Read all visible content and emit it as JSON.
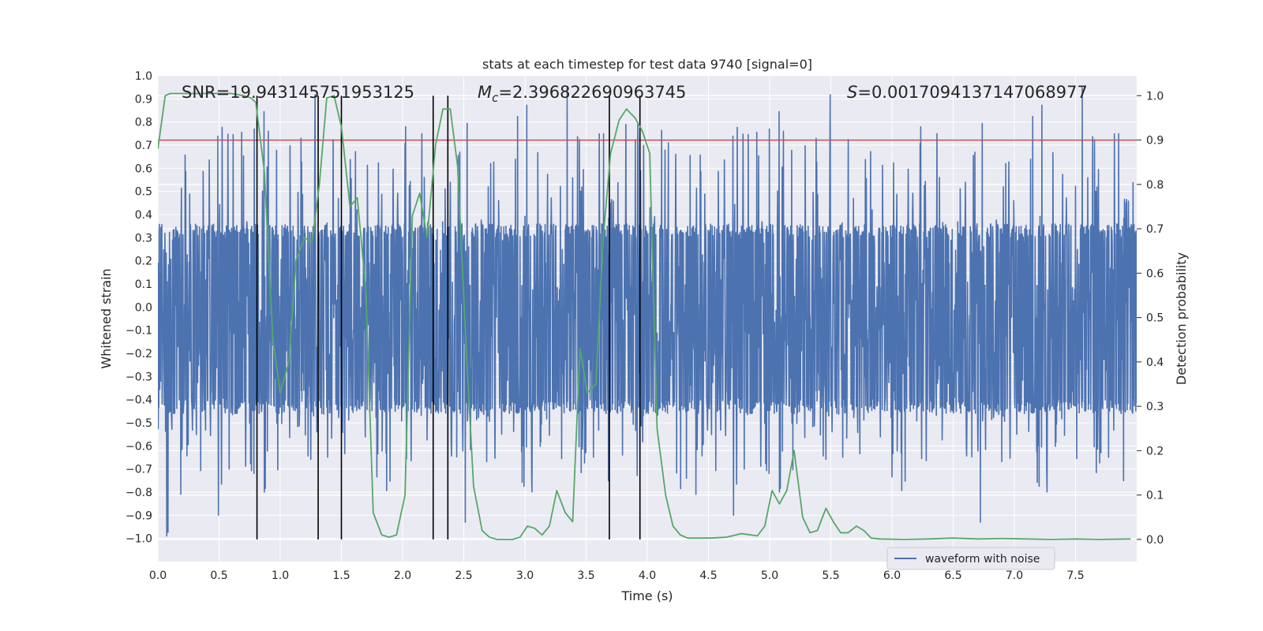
{
  "chart_data": {
    "type": "line",
    "title": "stats at each timestep for test data 9740 [signal=0]",
    "xlabel": "Time (s)",
    "ylabel_left": "Whitened strain",
    "ylabel_right": "Detection probability",
    "xlim": [
      0.0,
      8.0
    ],
    "ylim_left": [
      -1.1,
      1.0
    ],
    "ylim_right": [
      -0.05,
      1.045
    ],
    "x_ticks": [
      0.0,
      0.5,
      1.0,
      1.5,
      2.0,
      2.5,
      3.0,
      3.5,
      4.0,
      4.5,
      5.0,
      5.5,
      6.0,
      6.5,
      7.0,
      7.5
    ],
    "x_tick_labels": [
      "0.0",
      "0.5",
      "1.0",
      "1.5",
      "2.0",
      "2.5",
      "3.0",
      "3.5",
      "4.0",
      "4.5",
      "5.0",
      "5.5",
      "6.0",
      "6.5",
      "7.0",
      "7.5"
    ],
    "y_left_ticks": [
      1.0,
      0.9,
      0.8,
      0.7,
      0.6,
      0.5,
      0.4,
      0.3,
      0.2,
      0.1,
      0.0,
      -0.1,
      -0.2,
      -0.3,
      -0.4,
      -0.5,
      -0.6,
      -0.7,
      -0.8,
      -0.9,
      -1.0
    ],
    "y_left_tick_labels": [
      "1.0",
      "0.9",
      "0.8",
      "0.7",
      "0.6",
      "0.5",
      "0.4",
      "0.3",
      "0.2",
      "0.1",
      "0.0",
      "−0.1",
      "−0.2",
      "−0.3",
      "−0.4",
      "−0.5",
      "−0.6",
      "−0.7",
      "−0.8",
      "−0.9",
      "−1.0"
    ],
    "y_right_ticks": [
      1.0,
      0.9,
      0.8,
      0.7,
      0.6,
      0.5,
      0.4,
      0.3,
      0.2,
      0.1,
      0.0
    ],
    "y_right_tick_labels": [
      "1.0",
      "0.9",
      "0.8",
      "0.7",
      "0.6",
      "0.5",
      "0.4",
      "0.3",
      "0.2",
      "0.1",
      "0.0"
    ],
    "threshold": {
      "value": 0.9,
      "axis": "right",
      "color": "#c44e52"
    },
    "event_lines_x": [
      0.81,
      1.31,
      1.5,
      2.25,
      2.37,
      3.69,
      3.94
    ],
    "annotations": [
      {
        "label": "SNR=19.943145751953125",
        "x": 0.2
      },
      {
        "label": "M_c=2.396822690963745",
        "x": 2.6,
        "math_symbol": "M",
        "math_sub": "c",
        "value": "=2.396822690963745"
      },
      {
        "label": "S=0.0017094137147068977",
        "x": 5.6,
        "math_symbol": "S",
        "value": "=0.0017094137147068977"
      }
    ],
    "legend": {
      "placement": "lower-center",
      "entries": [
        "waveform with noise"
      ]
    },
    "series": [
      {
        "name": "waveform with noise",
        "axis": "left",
        "color": "#4c72b0",
        "kind": "noise",
        "samples_per_second": 400,
        "typical_range": [
          -0.43,
          0.33
        ],
        "min": -1.0,
        "max": 0.95
      },
      {
        "name": "detection probability",
        "axis": "right",
        "color": "#55a868",
        "x": [
          0.0,
          0.06,
          0.1,
          0.2,
          0.3,
          0.4,
          0.5,
          0.6,
          0.7,
          0.76,
          0.8,
          0.87,
          0.94,
          1.0,
          1.07,
          1.13,
          1.2,
          1.26,
          1.32,
          1.38,
          1.44,
          1.5,
          1.57,
          1.63,
          1.7,
          1.76,
          1.83,
          1.89,
          1.95,
          2.02,
          2.08,
          2.14,
          2.2,
          2.27,
          2.33,
          2.39,
          2.45,
          2.52,
          2.58,
          2.65,
          2.71,
          2.77,
          2.84,
          2.9,
          2.96,
          3.02,
          3.08,
          3.14,
          3.2,
          3.26,
          3.33,
          3.39,
          3.45,
          3.51,
          3.58,
          3.64,
          3.7,
          3.77,
          3.83,
          3.9,
          3.96,
          4.02,
          4.08,
          4.15,
          4.21,
          4.27,
          4.33,
          4.4,
          4.52,
          4.65,
          4.77,
          4.9,
          4.96,
          5.02,
          5.08,
          5.14,
          5.2,
          5.27,
          5.33,
          5.39,
          5.46,
          5.52,
          5.58,
          5.64,
          5.71,
          5.77,
          5.83,
          5.9,
          6.1,
          6.3,
          6.5,
          6.7,
          6.9,
          7.1,
          7.3,
          7.5,
          7.7,
          7.95
        ],
        "values": [
          0.88,
          1.0,
          1.005,
          1.005,
          1.005,
          1.005,
          1.005,
          1.005,
          1.0,
          0.995,
          0.985,
          0.83,
          0.45,
          0.33,
          0.4,
          0.63,
          0.68,
          0.67,
          0.8,
          0.995,
          1.0,
          0.93,
          0.75,
          0.77,
          0.56,
          0.06,
          0.01,
          0.005,
          0.01,
          0.1,
          0.73,
          0.78,
          0.68,
          0.89,
          0.97,
          0.97,
          0.84,
          0.43,
          0.12,
          0.02,
          0.005,
          0.0,
          0.0,
          0.0,
          0.005,
          0.03,
          0.025,
          0.01,
          0.03,
          0.11,
          0.06,
          0.04,
          0.43,
          0.33,
          0.35,
          0.68,
          0.87,
          0.945,
          0.97,
          0.95,
          0.92,
          0.87,
          0.25,
          0.1,
          0.03,
          0.01,
          0.003,
          0.003,
          0.003,
          0.005,
          0.013,
          0.008,
          0.03,
          0.11,
          0.08,
          0.11,
          0.2,
          0.05,
          0.015,
          0.02,
          0.07,
          0.04,
          0.015,
          0.015,
          0.03,
          0.02,
          0.003,
          0.001,
          0.0,
          0.001,
          0.003,
          0.001,
          0.002,
          0.001,
          0.0,
          0.001,
          0.0,
          0.001
        ]
      }
    ]
  }
}
